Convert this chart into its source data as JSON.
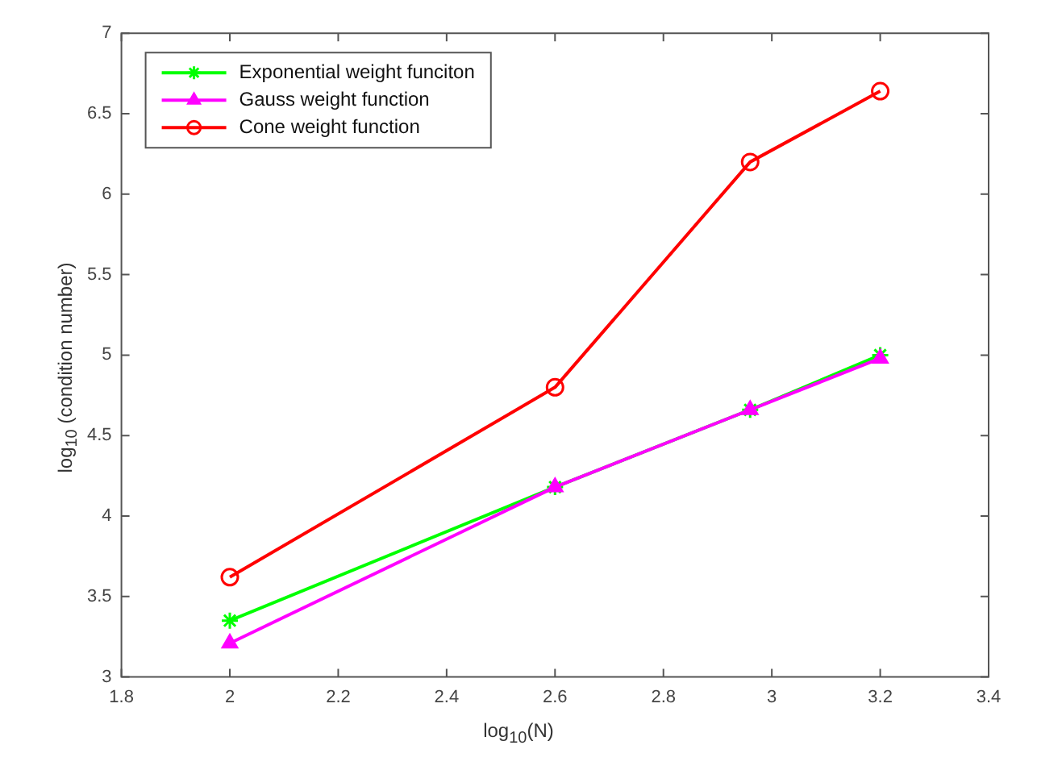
{
  "chart_data": {
    "type": "line",
    "xlabel": "log$_{10}$(N)",
    "ylabel": "log$_{10}$ (condition number)",
    "x": [
      2,
      2.6,
      2.96,
      3.2
    ],
    "xlim": [
      1.8,
      3.4
    ],
    "xticks": [
      1.8,
      2,
      2.2,
      2.4,
      2.6,
      2.8,
      3,
      3.2,
      3.4
    ],
    "ylim": [
      3,
      7
    ],
    "yticks": [
      3,
      3.5,
      4,
      4.5,
      5,
      5.5,
      6,
      6.5,
      7
    ],
    "grid": false,
    "legend": "top left",
    "line_style": "solid",
    "series": [
      {
        "name": "Exponential weight funciton",
        "color": "#00ff00",
        "marker": "cross",
        "values": [
          3.35,
          4.18,
          4.66,
          5.0
        ]
      },
      {
        "name": "Gauss weight function",
        "color": "#ff00ff",
        "marker": "triangle",
        "values": [
          3.21,
          4.18,
          4.66,
          4.98
        ]
      },
      {
        "name": "Cone weight function",
        "color": "#ff0000",
        "marker": "circle",
        "values": [
          3.62,
          4.8,
          6.2,
          6.64
        ]
      }
    ]
  }
}
